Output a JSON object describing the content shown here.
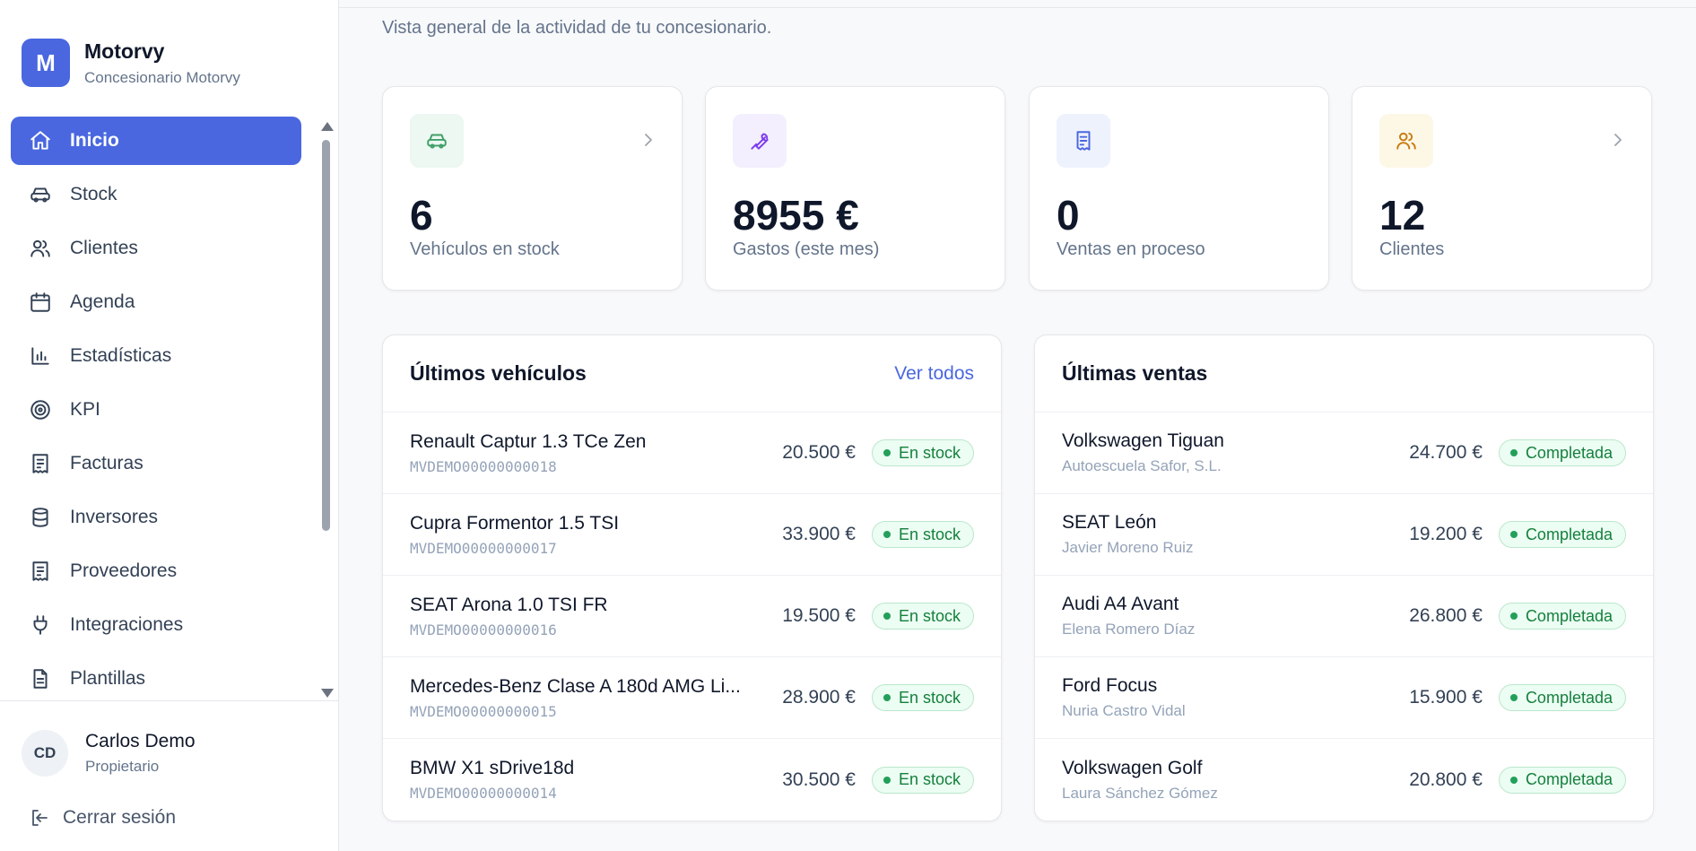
{
  "brand": {
    "initial": "M",
    "name": "Motorvy",
    "subtitle": "Concesionario Motorvy"
  },
  "nav": [
    {
      "label": "Inicio",
      "icon": "home-icon",
      "active": true
    },
    {
      "label": "Stock",
      "icon": "car-icon"
    },
    {
      "label": "Clientes",
      "icon": "users-icon"
    },
    {
      "label": "Agenda",
      "icon": "calendar-icon"
    },
    {
      "label": "Estadísticas",
      "icon": "bar-chart-icon"
    },
    {
      "label": "KPI",
      "icon": "target-icon"
    },
    {
      "label": "Facturas",
      "icon": "receipt-icon"
    },
    {
      "label": "Inversores",
      "icon": "database-icon"
    },
    {
      "label": "Proveedores",
      "icon": "receipt-icon"
    },
    {
      "label": "Integraciones",
      "icon": "plug-icon"
    },
    {
      "label": "Plantillas",
      "icon": "file-icon"
    }
  ],
  "user": {
    "initials": "CD",
    "name": "Carlos Demo",
    "role": "Propietario"
  },
  "logout_label": "Cerrar sesión",
  "page_subtitle": "Vista general de la actividad de tu concesionario.",
  "stats": [
    {
      "value": "6",
      "label": "Vehículos en stock",
      "icon": "car-icon",
      "color": "#3f9f68",
      "bg": "#ecf8f1",
      "chevron": true
    },
    {
      "value": "8955 €",
      "label": "Gastos (este mes)",
      "icon": "wrench-icon",
      "color": "#7c3aed",
      "bg": "#f3effe",
      "chevron": false
    },
    {
      "value": "0",
      "label": "Ventas en proceso",
      "icon": "receipt-icon",
      "color": "#4a67e0",
      "bg": "#eef2fd",
      "chevron": false
    },
    {
      "value": "12",
      "label": "Clientes",
      "icon": "users-icon",
      "color": "#c77c10",
      "bg": "#fdf7e6",
      "chevron": true
    }
  ],
  "vehicles": {
    "title": "Últimos vehículos",
    "link": "Ver todos",
    "rows": [
      {
        "name": "Renault Captur 1.3 TCe Zen",
        "ref": "MVDEMO00000000018",
        "price": "20.500 €",
        "status": "En stock"
      },
      {
        "name": "Cupra Formentor 1.5 TSI",
        "ref": "MVDEMO00000000017",
        "price": "33.900 €",
        "status": "En stock"
      },
      {
        "name": "SEAT Arona 1.0 TSI FR",
        "ref": "MVDEMO00000000016",
        "price": "19.500 €",
        "status": "En stock"
      },
      {
        "name": "Mercedes-Benz Clase A 180d AMG Li...",
        "ref": "MVDEMO00000000015",
        "price": "28.900 €",
        "status": "En stock"
      },
      {
        "name": "BMW X1 sDrive18d",
        "ref": "MVDEMO00000000014",
        "price": "30.500 €",
        "status": "En stock"
      }
    ]
  },
  "sales": {
    "title": "Últimas ventas",
    "rows": [
      {
        "name": "Volkswagen Tiguan",
        "client": "Autoescuela Safor, S.L.",
        "price": "24.700 €",
        "status": "Completada"
      },
      {
        "name": "SEAT León",
        "client": "Javier Moreno Ruiz",
        "price": "19.200 €",
        "status": "Completada"
      },
      {
        "name": "Audi A4 Avant",
        "client": "Elena Romero Díaz",
        "price": "26.800 €",
        "status": "Completada"
      },
      {
        "name": "Ford Focus",
        "client": "Nuria Castro Vidal",
        "price": "15.900 €",
        "status": "Completada"
      },
      {
        "name": "Volkswagen Golf",
        "client": "Laura Sánchez Gómez",
        "price": "20.800 €",
        "status": "Completada"
      }
    ]
  }
}
